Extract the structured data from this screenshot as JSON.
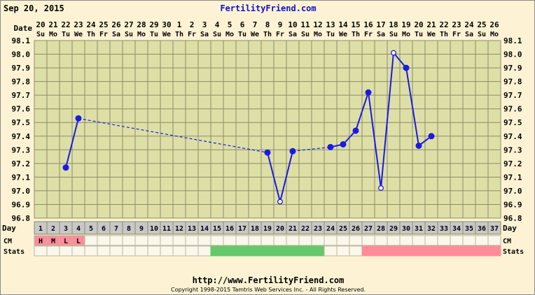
{
  "header": {
    "date": "Sep 20, 2015",
    "site": "FertilityFriend.com"
  },
  "footer": {
    "url": "http://www.FertilityFriend.com",
    "copyright": "Copyright 1998-2015 Tamtris Web Services Inc. - All Rights Reserved."
  },
  "labels": {
    "date": "Date",
    "day": "Day",
    "cm": "CM",
    "stats": "Stats"
  },
  "colors": {
    "background": "#fdf3d4",
    "grid_fill": "#dedfa6",
    "grid_line": "#8c8c68",
    "line": "#1a1ae6",
    "day_row": "#c8c8c8",
    "cell": "#fbf7ea",
    "cm": "#ff8c9a",
    "green": "#66c86a",
    "pink": "#ff8c9a"
  },
  "chart_data": {
    "type": "line",
    "title": "",
    "xlabel": "Day",
    "ylabel": "",
    "ylim": [
      96.8,
      98.1
    ],
    "y_ticks": [
      "96.8",
      "96.9",
      "97.0",
      "97.1",
      "97.2",
      "97.3",
      "97.4",
      "97.5",
      "97.6",
      "97.7",
      "97.8",
      "97.9",
      "98.0",
      "98.1"
    ],
    "grid": true,
    "dates": [
      "20",
      "21",
      "22",
      "23",
      "24",
      "25",
      "26",
      "27",
      "28",
      "29",
      "30",
      "1",
      "2",
      "3",
      "4",
      "5",
      "6",
      "7",
      "8",
      "9",
      "10",
      "11",
      "12",
      "13",
      "14",
      "15",
      "16",
      "17",
      "18",
      "19",
      "20",
      "21",
      "22",
      "23",
      "24",
      "25",
      "26"
    ],
    "weekdays": [
      "Su",
      "Mo",
      "Tu",
      "We",
      "Th",
      "Fr",
      "Sa",
      "Su",
      "Mo",
      "Tu",
      "We",
      "Th",
      "Fr",
      "Sa",
      "Su",
      "Mo",
      "Tu",
      "We",
      "Th",
      "Fr",
      "Sa",
      "Su",
      "Mo",
      "Tu",
      "We",
      "Th",
      "Fr",
      "Sa",
      "Su",
      "Mo",
      "Tu",
      "We",
      "Th",
      "Fr",
      "Sa",
      "Su",
      "Mo"
    ],
    "days": [
      1,
      2,
      3,
      4,
      5,
      6,
      7,
      8,
      9,
      10,
      11,
      12,
      13,
      14,
      15,
      16,
      17,
      18,
      19,
      20,
      21,
      22,
      23,
      24,
      25,
      26,
      27,
      28,
      29,
      30,
      31,
      32,
      33,
      34,
      35,
      36,
      37
    ],
    "points": [
      {
        "day": 3,
        "temp": 97.17,
        "open": false
      },
      {
        "day": 4,
        "temp": 97.53,
        "open": false
      },
      {
        "day": 19,
        "temp": 97.28,
        "open": false
      },
      {
        "day": 20,
        "temp": 96.92,
        "open": true
      },
      {
        "day": 21,
        "temp": 97.29,
        "open": false
      },
      {
        "day": 24,
        "temp": 97.32,
        "open": false
      },
      {
        "day": 25,
        "temp": 97.34,
        "open": false
      },
      {
        "day": 26,
        "temp": 97.44,
        "open": false
      },
      {
        "day": 27,
        "temp": 97.72,
        "open": false
      },
      {
        "day": 28,
        "temp": 97.02,
        "open": true
      },
      {
        "day": 29,
        "temp": 98.01,
        "open": true
      },
      {
        "day": 30,
        "temp": 97.9,
        "open": false
      },
      {
        "day": 31,
        "temp": 97.33,
        "open": false
      },
      {
        "day": 32,
        "temp": 97.4,
        "open": false
      }
    ],
    "dashed_gaps": [
      [
        4,
        19
      ],
      [
        21,
        24
      ]
    ],
    "cm": [
      "H",
      "M",
      "L",
      "L",
      "",
      "",
      "",
      "",
      "",
      "",
      "",
      "",
      "",
      "",
      "",
      "",
      "",
      "",
      "",
      "",
      "",
      "",
      "",
      "",
      "",
      "",
      "",
      "",
      "",
      "",
      "",
      "",
      "",
      "",
      "",
      "",
      ""
    ],
    "stats": [
      {
        "start": 15,
        "end": 23,
        "color": "green"
      },
      {
        "start": 27,
        "end": 37,
        "color": "pink"
      }
    ]
  }
}
